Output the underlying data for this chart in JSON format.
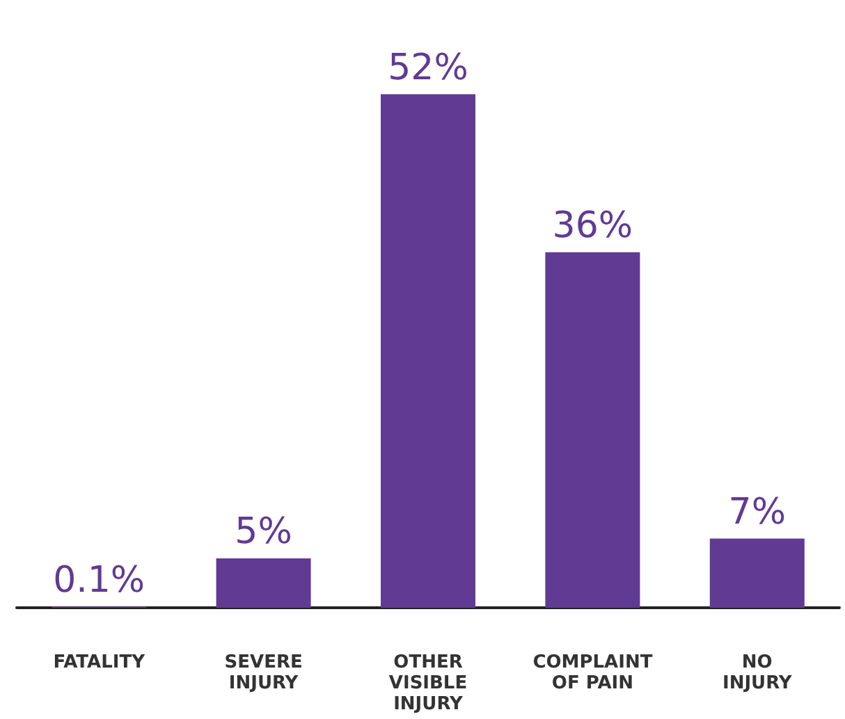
{
  "chart_data": {
    "type": "bar",
    "categories": [
      "FATALITY",
      "SEVERE\nINJURY",
      "OTHER\nVISIBLE\nINJURY",
      "COMPLAINT\nOF PAIN",
      "NO\nINJURY"
    ],
    "values": [
      0.1,
      5,
      52,
      36,
      7
    ],
    "value_labels": [
      "0.1%",
      "5%",
      "52%",
      "36%",
      "7%"
    ],
    "color": "#613a93",
    "tick_labels": "x",
    "grid": false
  }
}
